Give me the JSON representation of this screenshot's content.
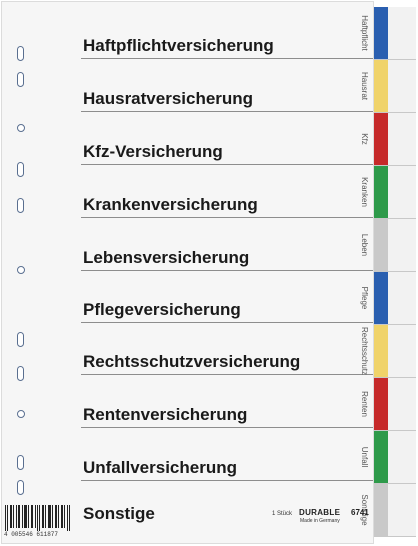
{
  "entries": [
    "Haftpflichtversicherung",
    "Hausratversicherung",
    "Kfz-Versicherung",
    "Krankenversicherung",
    "Lebensversicherung",
    "Pflegeversicherung",
    "Rechtsschutzversicherung",
    "Rentenversicherung",
    "Unfallversicherung",
    "Sonstige"
  ],
  "tabs": [
    {
      "label": "Haftpflicht",
      "color": "#2a5fb0"
    },
    {
      "label": "Hausrat",
      "color": "#f0d36a"
    },
    {
      "label": "Kfz",
      "color": "#c62a2a"
    },
    {
      "label": "Kranken",
      "color": "#2e9a4a"
    },
    {
      "label": "Leben",
      "color": "#c9c9c9"
    },
    {
      "label": "Pflege",
      "color": "#2a5fb0"
    },
    {
      "label": "Rechtsschutz",
      "color": "#f0d36a"
    },
    {
      "label": "Renten",
      "color": "#c62a2a"
    },
    {
      "label": "Unfall",
      "color": "#2e9a4a"
    },
    {
      "label": "Sonstige",
      "color": "#c9c9c9"
    }
  ],
  "footer": {
    "barcode_number": "4 005546 611877",
    "quantity": "1 Stück",
    "brand": "DURABLE",
    "model": "6741",
    "made_in": "Made in Germany"
  }
}
